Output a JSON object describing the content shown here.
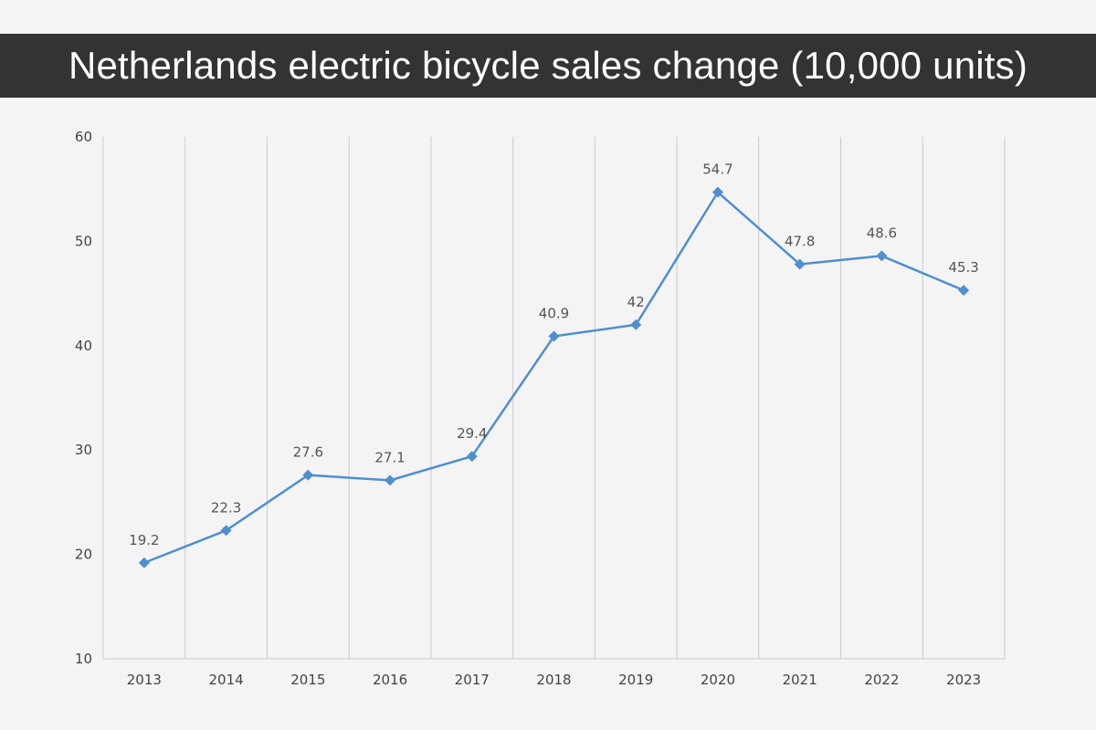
{
  "chart_data": {
    "type": "line",
    "title": "Netherlands electric bicycle sales change (10,000 units)",
    "xlabel": "",
    "ylabel": "",
    "categories": [
      "2013",
      "2014",
      "2015",
      "2016",
      "2017",
      "2018",
      "2019",
      "2020",
      "2021",
      "2022",
      "2023"
    ],
    "series": [
      {
        "values": [
          19.2,
          22.3,
          27.6,
          27.1,
          29.4,
          40.9,
          42,
          54.7,
          47.8,
          48.6,
          45.3
        ],
        "data_labels": [
          "19.2",
          "22.3",
          "27.6",
          "27.1",
          "29.4",
          "40.9",
          "42",
          "54.7",
          "47.8",
          "48.6",
          "45.3"
        ],
        "color": "#4f8fcf",
        "marker": "diamond"
      }
    ],
    "ylim": [
      10,
      60
    ],
    "yticks": [
      10,
      20,
      30,
      40,
      50,
      60
    ],
    "grid": "vertical",
    "legend": "none",
    "colors": {
      "background": "#f4f4f4",
      "banner": "#333333",
      "grid": "#cccccc",
      "line": "#4f8fcf"
    }
  }
}
